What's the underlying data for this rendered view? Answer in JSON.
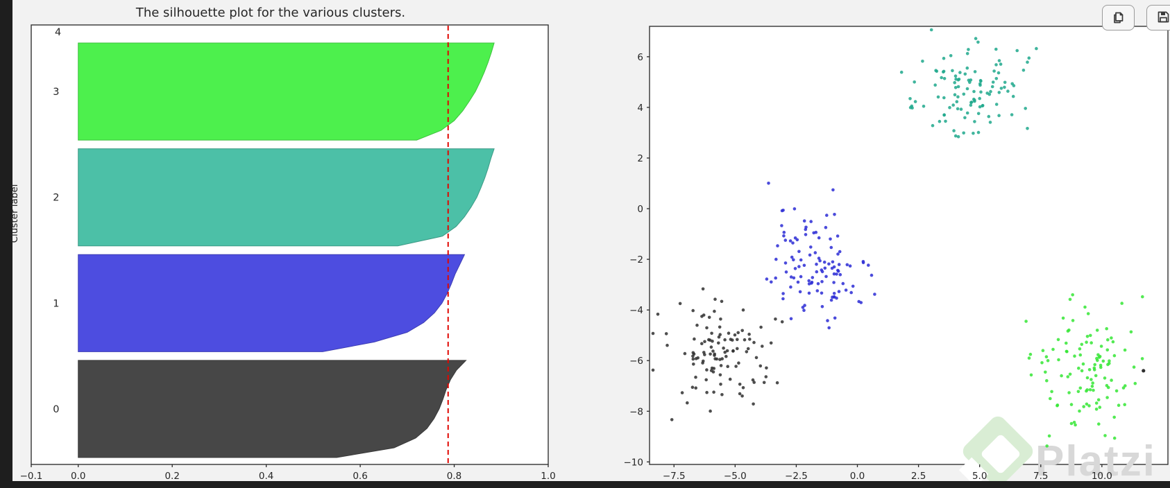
{
  "frame": {
    "strip_color": "#1e1e1e"
  },
  "toolbar": {
    "buttons": [
      {
        "name": "copy-output",
        "icon": "copy"
      },
      {
        "name": "save-output",
        "icon": "save"
      }
    ]
  },
  "watermark": {
    "text": "Platzi",
    "diamond_color": "#d9edd4",
    "text_color": "#d8d8d8"
  },
  "chart_data": [
    {
      "type": "area",
      "variant": "silhouette",
      "title": "The silhouette plot for the various clusters.",
      "ylabel": "Cluster label",
      "xlabel": "",
      "xlim": [
        -0.1,
        1.0
      ],
      "xticks": [
        -0.1,
        0.0,
        0.2,
        0.4,
        0.6,
        0.8,
        1.0
      ],
      "xtick_labels": [
        "−0.1",
        "0.0",
        "0.2",
        "0.4",
        "0.6",
        "0.8",
        "1.0"
      ],
      "top_axis_label": "4",
      "average_silhouette": 0.787,
      "avg_line_color": "#e10600",
      "avg_line_style": "dashed",
      "grid": false,
      "clusters": [
        {
          "label": "0",
          "color": "#474747",
          "fraction": 0.25,
          "profile": [
            0.825,
            0.805,
            0.792,
            0.783,
            0.776,
            0.768,
            0.757,
            0.742,
            0.718,
            0.672,
            0.55
          ]
        },
        {
          "label": "1",
          "color": "#4d4de0",
          "fraction": 0.25,
          "profile": [
            0.822,
            0.812,
            0.802,
            0.794,
            0.785,
            0.774,
            0.758,
            0.735,
            0.7,
            0.63,
            0.52
          ]
        },
        {
          "label": "2",
          "color": "#4cc0a7",
          "fraction": 0.25,
          "profile": [
            0.885,
            0.878,
            0.872,
            0.865,
            0.857,
            0.848,
            0.836,
            0.822,
            0.804,
            0.775,
            0.68
          ]
        },
        {
          "label": "3",
          "color": "#4df04d",
          "fraction": 0.25,
          "profile": [
            0.885,
            0.879,
            0.872,
            0.864,
            0.855,
            0.845,
            0.832,
            0.818,
            0.8,
            0.772,
            0.72
          ]
        }
      ]
    },
    {
      "type": "scatter",
      "title": "",
      "xlim": [
        -8.5,
        12.7
      ],
      "ylim": [
        -10.1,
        7.2
      ],
      "xticks": [
        -7.5,
        -5.0,
        -2.5,
        0.0,
        2.5,
        5.0,
        7.5,
        10.0
      ],
      "xtick_labels": [
        "−7.5",
        "−5.0",
        "−2.5",
        "0.0",
        "2.5",
        "5.0",
        "7.5",
        "10.0"
      ],
      "yticks": [
        6,
        4,
        2,
        0,
        -2,
        -4,
        -6,
        -8,
        -10
      ],
      "ytick_labels": [
        "6",
        "4",
        "2",
        "0",
        "−2",
        "−4",
        "−6",
        "−8",
        "−10"
      ],
      "grid": false,
      "clusters": [
        {
          "name": "cluster-0",
          "color": "#2f2f2f",
          "center": [
            -5.7,
            -5.7
          ],
          "std": [
            1.05,
            1.0
          ],
          "n": 112
        },
        {
          "name": "cluster-1",
          "color": "#2b2bd5",
          "center": [
            -1.8,
            -2.2
          ],
          "std": [
            1.0,
            1.05
          ],
          "n": 112
        },
        {
          "name": "cluster-2",
          "color": "#1fa88c",
          "center": [
            4.5,
            4.7
          ],
          "std": [
            1.1,
            0.95
          ],
          "n": 112
        },
        {
          "name": "cluster-3",
          "color": "#35e635",
          "center": [
            9.3,
            -6.4
          ],
          "std": [
            1.05,
            1.15
          ],
          "n": 112
        }
      ],
      "outliers": [
        {
          "x": 11.7,
          "y": -6.4,
          "color": "#2f2f2f"
        }
      ]
    }
  ]
}
